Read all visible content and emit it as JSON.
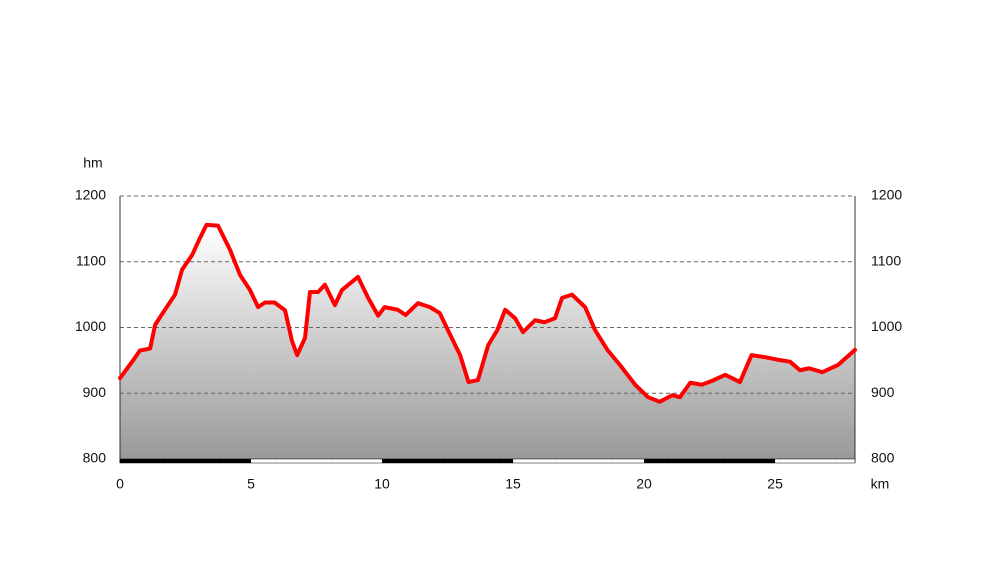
{
  "chart_data": {
    "type": "area-line",
    "y_label": "hm",
    "x_label": "km",
    "color": "#ff0000",
    "grid": true,
    "x": [
      0,
      0.5,
      0.76,
      1.15,
      1.34,
      1.6,
      2.1,
      2.37,
      2.75,
      3.05,
      3.3,
      3.74,
      4.2,
      4.58,
      4.96,
      5.27,
      5.53,
      5.9,
      6.3,
      6.56,
      6.76,
      7.06,
      7.25,
      7.56,
      7.82,
      8.2,
      8.47,
      9.08,
      9.47,
      9.85,
      10.1,
      10.6,
      10.9,
      11.37,
      11.83,
      12.2,
      12.6,
      12.98,
      13.3,
      13.66,
      14.05,
      14.4,
      14.7,
      15.08,
      15.38,
      15.84,
      16.2,
      16.6,
      16.87,
      17.25,
      17.75,
      18.13,
      18.6,
      19.08,
      19.66,
      20.15,
      20.6,
      21.07,
      21.37,
      21.76,
      22.2,
      22.6,
      23.1,
      23.66,
      24.1,
      24.6,
      25.1,
      25.57,
      25.95,
      26.3,
      26.8,
      27.4,
      28.05
    ],
    "values": [
      923,
      950,
      965,
      968,
      1004,
      1020,
      1050,
      1088,
      1110,
      1136,
      1156,
      1155,
      1118,
      1080,
      1057,
      1031,
      1038,
      1038,
      1026,
      980,
      958,
      984,
      1054,
      1054,
      1065,
      1034,
      1057,
      1077,
      1045,
      1018,
      1031,
      1027,
      1019,
      1037,
      1031,
      1022,
      989,
      958,
      917,
      920,
      973,
      996,
      1027,
      1014,
      993,
      1011,
      1008,
      1014,
      1045,
      1050,
      1031,
      996,
      966,
      943,
      913,
      894,
      887,
      897,
      894,
      916,
      913,
      919,
      928,
      917,
      958,
      955,
      951,
      948,
      935,
      938,
      932,
      943,
      966
    ],
    "xlim": [
      0,
      28.05
    ],
    "xticks": [
      0,
      5,
      10,
      15,
      20,
      25
    ],
    "ylim": [
      800,
      1200
    ],
    "yticks": [
      800,
      900,
      1000,
      1100,
      1200
    ],
    "y2lim": [
      800,
      1200
    ],
    "y2ticks": [
      800,
      900,
      1000,
      1100,
      1200
    ]
  }
}
